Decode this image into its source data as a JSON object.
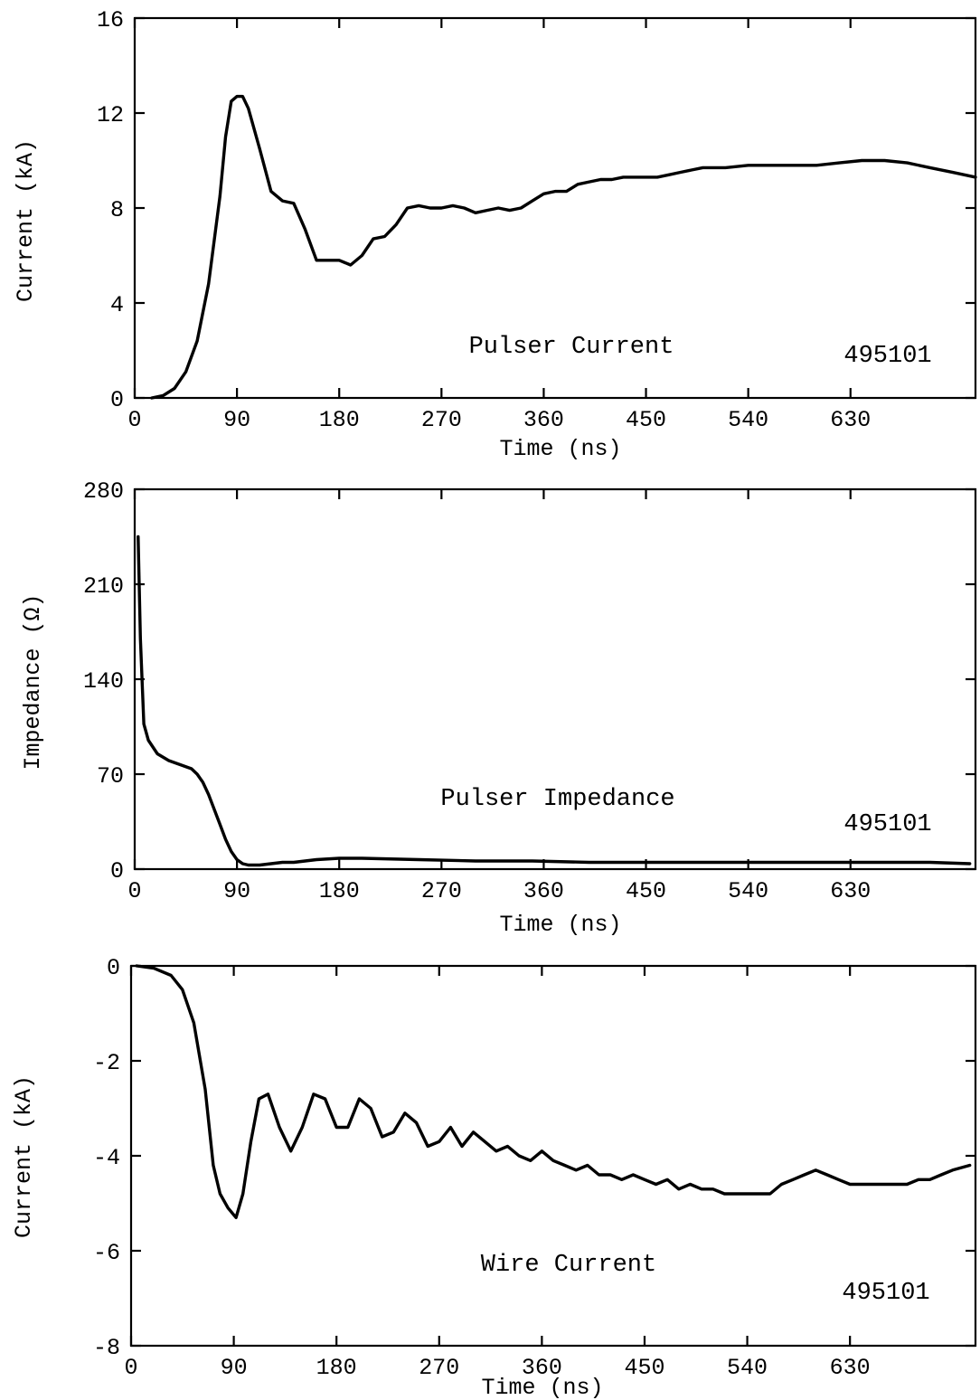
{
  "chart_data": [
    {
      "type": "line",
      "title": "",
      "xlabel": "Time (ns)",
      "ylabel": "Current (kA)",
      "xlim": [
        0,
        740
      ],
      "ylim": [
        0,
        16
      ],
      "xticks": [
        0,
        90,
        180,
        270,
        360,
        450,
        540,
        630
      ],
      "yticks": [
        0,
        4,
        8,
        12,
        16
      ],
      "xtick_labels": [
        "0",
        "90",
        "180",
        "270",
        "360",
        "450",
        "540",
        "630"
      ],
      "ytick_labels": [
        "0",
        "4",
        "8",
        "12",
        "16"
      ],
      "annotations": [
        "Pulser Current",
        "495101"
      ],
      "series": [
        {
          "x": [
            15,
            25,
            35,
            45,
            55,
            65,
            75,
            80,
            85,
            90,
            95,
            100,
            110,
            120,
            130,
            140,
            150,
            160,
            170,
            180,
            190,
            200,
            210,
            220,
            230,
            240,
            250,
            260,
            270,
            280,
            290,
            300,
            310,
            320,
            330,
            340,
            350,
            360,
            370,
            380,
            390,
            400,
            410,
            420,
            430,
            440,
            450,
            460,
            470,
            480,
            490,
            500,
            520,
            540,
            560,
            580,
            600,
            620,
            640,
            660,
            680,
            700,
            720,
            740
          ],
          "y": [
            0.0,
            0.1,
            0.4,
            1.1,
            2.4,
            4.8,
            8.5,
            11.0,
            12.5,
            12.7,
            12.7,
            12.2,
            10.5,
            8.7,
            8.3,
            8.2,
            7.1,
            5.8,
            5.8,
            5.8,
            5.6,
            6.0,
            6.7,
            6.8,
            7.3,
            8.0,
            8.1,
            8.0,
            8.0,
            8.1,
            8.0,
            7.8,
            7.9,
            8.0,
            7.9,
            8.0,
            8.3,
            8.6,
            8.7,
            8.7,
            9.0,
            9.1,
            9.2,
            9.2,
            9.3,
            9.3,
            9.3,
            9.3,
            9.4,
            9.5,
            9.6,
            9.7,
            9.7,
            9.8,
            9.8,
            9.8,
            9.8,
            9.9,
            10.0,
            10.0,
            9.9,
            9.7,
            9.5,
            9.3
          ]
        }
      ]
    },
    {
      "type": "line",
      "title": "",
      "xlabel": "Time (ns)",
      "ylabel": "Impedance (Ω)",
      "xlim": [
        0,
        740
      ],
      "ylim": [
        0,
        280
      ],
      "xticks": [
        0,
        90,
        180,
        270,
        360,
        450,
        540,
        630
      ],
      "yticks": [
        0,
        70,
        140,
        210,
        280
      ],
      "xtick_labels": [
        "0",
        "90",
        "180",
        "270",
        "360",
        "450",
        "540",
        "630"
      ],
      "ytick_labels": [
        "0",
        "70",
        "140",
        "210",
        "280"
      ],
      "annotations": [
        "Pulser Impedance",
        "495101"
      ],
      "series": [
        {
          "x": [
            3,
            5,
            8,
            12,
            20,
            30,
            40,
            50,
            55,
            60,
            65,
            70,
            75,
            80,
            85,
            90,
            95,
            100,
            110,
            120,
            130,
            140,
            150,
            160,
            180,
            200,
            250,
            300,
            350,
            400,
            450,
            500,
            550,
            600,
            650,
            700,
            735
          ],
          "y": [
            245,
            170,
            107,
            95,
            85,
            80,
            77,
            74,
            70,
            64,
            55,
            44,
            33,
            22,
            13,
            7,
            4,
            3,
            3,
            4,
            5,
            5,
            6,
            7,
            8,
            8,
            7,
            6,
            6,
            5,
            5,
            5,
            5,
            5,
            5,
            5,
            4
          ]
        }
      ]
    },
    {
      "type": "line",
      "title": "",
      "xlabel": "Time (ns)",
      "ylabel": "Current (kA)",
      "xlim": [
        0,
        740
      ],
      "ylim": [
        -8,
        0
      ],
      "xticks": [
        0,
        90,
        180,
        270,
        360,
        450,
        540,
        630
      ],
      "yticks": [
        0,
        -2,
        -4,
        -6,
        -8
      ],
      "xtick_labels": [
        "0",
        "90",
        "180",
        "270",
        "360",
        "450",
        "540",
        "630"
      ],
      "ytick_labels": [
        "0",
        "-2",
        "-4",
        "-6",
        "-8"
      ],
      "annotations": [
        "Wire Current",
        "495101"
      ],
      "series": [
        {
          "x": [
            5,
            20,
            35,
            45,
            55,
            65,
            72,
            78,
            85,
            92,
            98,
            105,
            112,
            120,
            130,
            140,
            150,
            160,
            170,
            180,
            190,
            200,
            210,
            220,
            230,
            240,
            250,
            260,
            270,
            280,
            290,
            300,
            310,
            320,
            330,
            340,
            350,
            360,
            370,
            380,
            390,
            400,
            410,
            420,
            430,
            440,
            450,
            460,
            470,
            480,
            490,
            500,
            510,
            520,
            530,
            540,
            550,
            560,
            570,
            580,
            590,
            600,
            610,
            620,
            630,
            640,
            650,
            660,
            670,
            680,
            690,
            700,
            710,
            720,
            735
          ],
          "y": [
            0.0,
            -0.05,
            -0.2,
            -0.5,
            -1.2,
            -2.6,
            -4.2,
            -4.8,
            -5.1,
            -5.3,
            -4.8,
            -3.7,
            -2.8,
            -2.7,
            -3.4,
            -3.9,
            -3.4,
            -2.7,
            -2.8,
            -3.4,
            -3.4,
            -2.8,
            -3.0,
            -3.6,
            -3.5,
            -3.1,
            -3.3,
            -3.8,
            -3.7,
            -3.4,
            -3.8,
            -3.5,
            -3.7,
            -3.9,
            -3.8,
            -4.0,
            -4.1,
            -3.9,
            -4.1,
            -4.2,
            -4.3,
            -4.2,
            -4.4,
            -4.4,
            -4.5,
            -4.4,
            -4.5,
            -4.6,
            -4.5,
            -4.7,
            -4.6,
            -4.7,
            -4.7,
            -4.8,
            -4.8,
            -4.8,
            -4.8,
            -4.8,
            -4.6,
            -4.5,
            -4.4,
            -4.3,
            -4.4,
            -4.5,
            -4.6,
            -4.6,
            -4.6,
            -4.6,
            -4.6,
            -4.6,
            -4.5,
            -4.5,
            -4.4,
            -4.3,
            -4.2
          ]
        }
      ]
    }
  ]
}
